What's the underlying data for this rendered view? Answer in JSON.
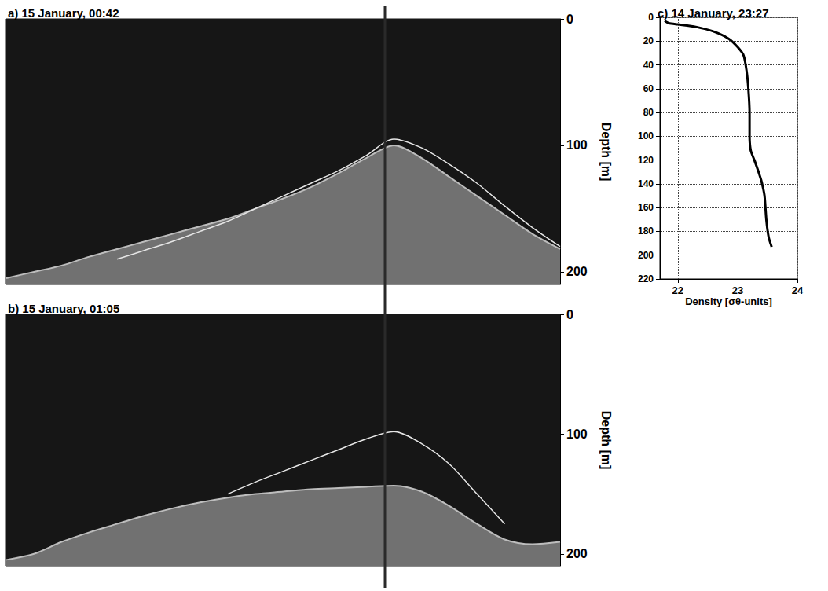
{
  "chart_data": [
    {
      "type": "echogram",
      "title": "a) 15 January, 00:42",
      "y_label": "Depth [m]",
      "x": [
        0,
        1,
        2,
        3,
        4,
        5,
        6,
        7,
        8,
        9,
        10,
        11,
        12,
        13,
        14,
        15,
        16,
        17,
        18,
        19,
        20
      ],
      "xlim": [
        0,
        20
      ],
      "ylim": [
        0,
        210
      ],
      "yticks": [
        0,
        100,
        200
      ],
      "tick_labels": "y",
      "series": [
        {
          "type": "area",
          "color": "#bdbdbd",
          "values": [
            205,
            200,
            195,
            188,
            182,
            176,
            170,
            164,
            158,
            150,
            142,
            133,
            122,
            110,
            100,
            110,
            125,
            140,
            155,
            170,
            182
          ]
        },
        {
          "type": "line",
          "color": "#e6e6e6",
          "values": [
            null,
            null,
            null,
            null,
            190,
            183,
            176,
            168,
            160,
            150,
            140,
            130,
            120,
            108,
            95,
            102,
            115,
            130,
            148,
            165,
            180
          ]
        }
      ]
    },
    {
      "type": "echogram",
      "title": "b) 15 January, 01:05",
      "y_label": "Depth [m]",
      "x": [
        0,
        1,
        2,
        3,
        4,
        5,
        6,
        7,
        8,
        9,
        10,
        11,
        12,
        13,
        14,
        15,
        16,
        17,
        18,
        19,
        20
      ],
      "xlim": [
        0,
        20
      ],
      "ylim": [
        0,
        210
      ],
      "yticks": [
        0,
        100,
        200
      ],
      "tick_labels": "y",
      "series": [
        {
          "type": "area",
          "color": "#bdbdbd",
          "values": [
            205,
            200,
            190,
            182,
            175,
            168,
            162,
            157,
            153,
            150,
            148,
            146,
            145,
            144,
            143,
            148,
            160,
            175,
            188,
            192,
            190
          ]
        },
        {
          "type": "line",
          "color": "#e6e6e6",
          "values": [
            null,
            null,
            null,
            null,
            null,
            null,
            null,
            null,
            150,
            140,
            131,
            122,
            113,
            104,
            98,
            108,
            125,
            150,
            175,
            null,
            null
          ]
        }
      ]
    },
    {
      "type": "line",
      "title": "c) 14 January, 23:27",
      "x_label": "Density [σθ-units]",
      "color": "#000000",
      "x": [
        21.78,
        21.85,
        22.0,
        22.3,
        22.6,
        22.85,
        23.0,
        23.1,
        23.15,
        23.18,
        23.2,
        23.2,
        23.22,
        23.28,
        23.35,
        23.4,
        23.45,
        23.48,
        23.52,
        23.57
      ],
      "values": [
        3,
        5,
        6,
        8,
        12,
        18,
        25,
        32,
        45,
        60,
        80,
        100,
        112,
        120,
        130,
        138,
        150,
        170,
        185,
        193
      ],
      "xlim": [
        21.7,
        24
      ],
      "xticks": [
        22,
        23,
        24
      ],
      "ylim": [
        0,
        220
      ],
      "yticks": [
        0,
        20,
        40,
        60,
        80,
        100,
        120,
        140,
        160,
        180,
        200,
        220
      ],
      "grid": true
    }
  ]
}
